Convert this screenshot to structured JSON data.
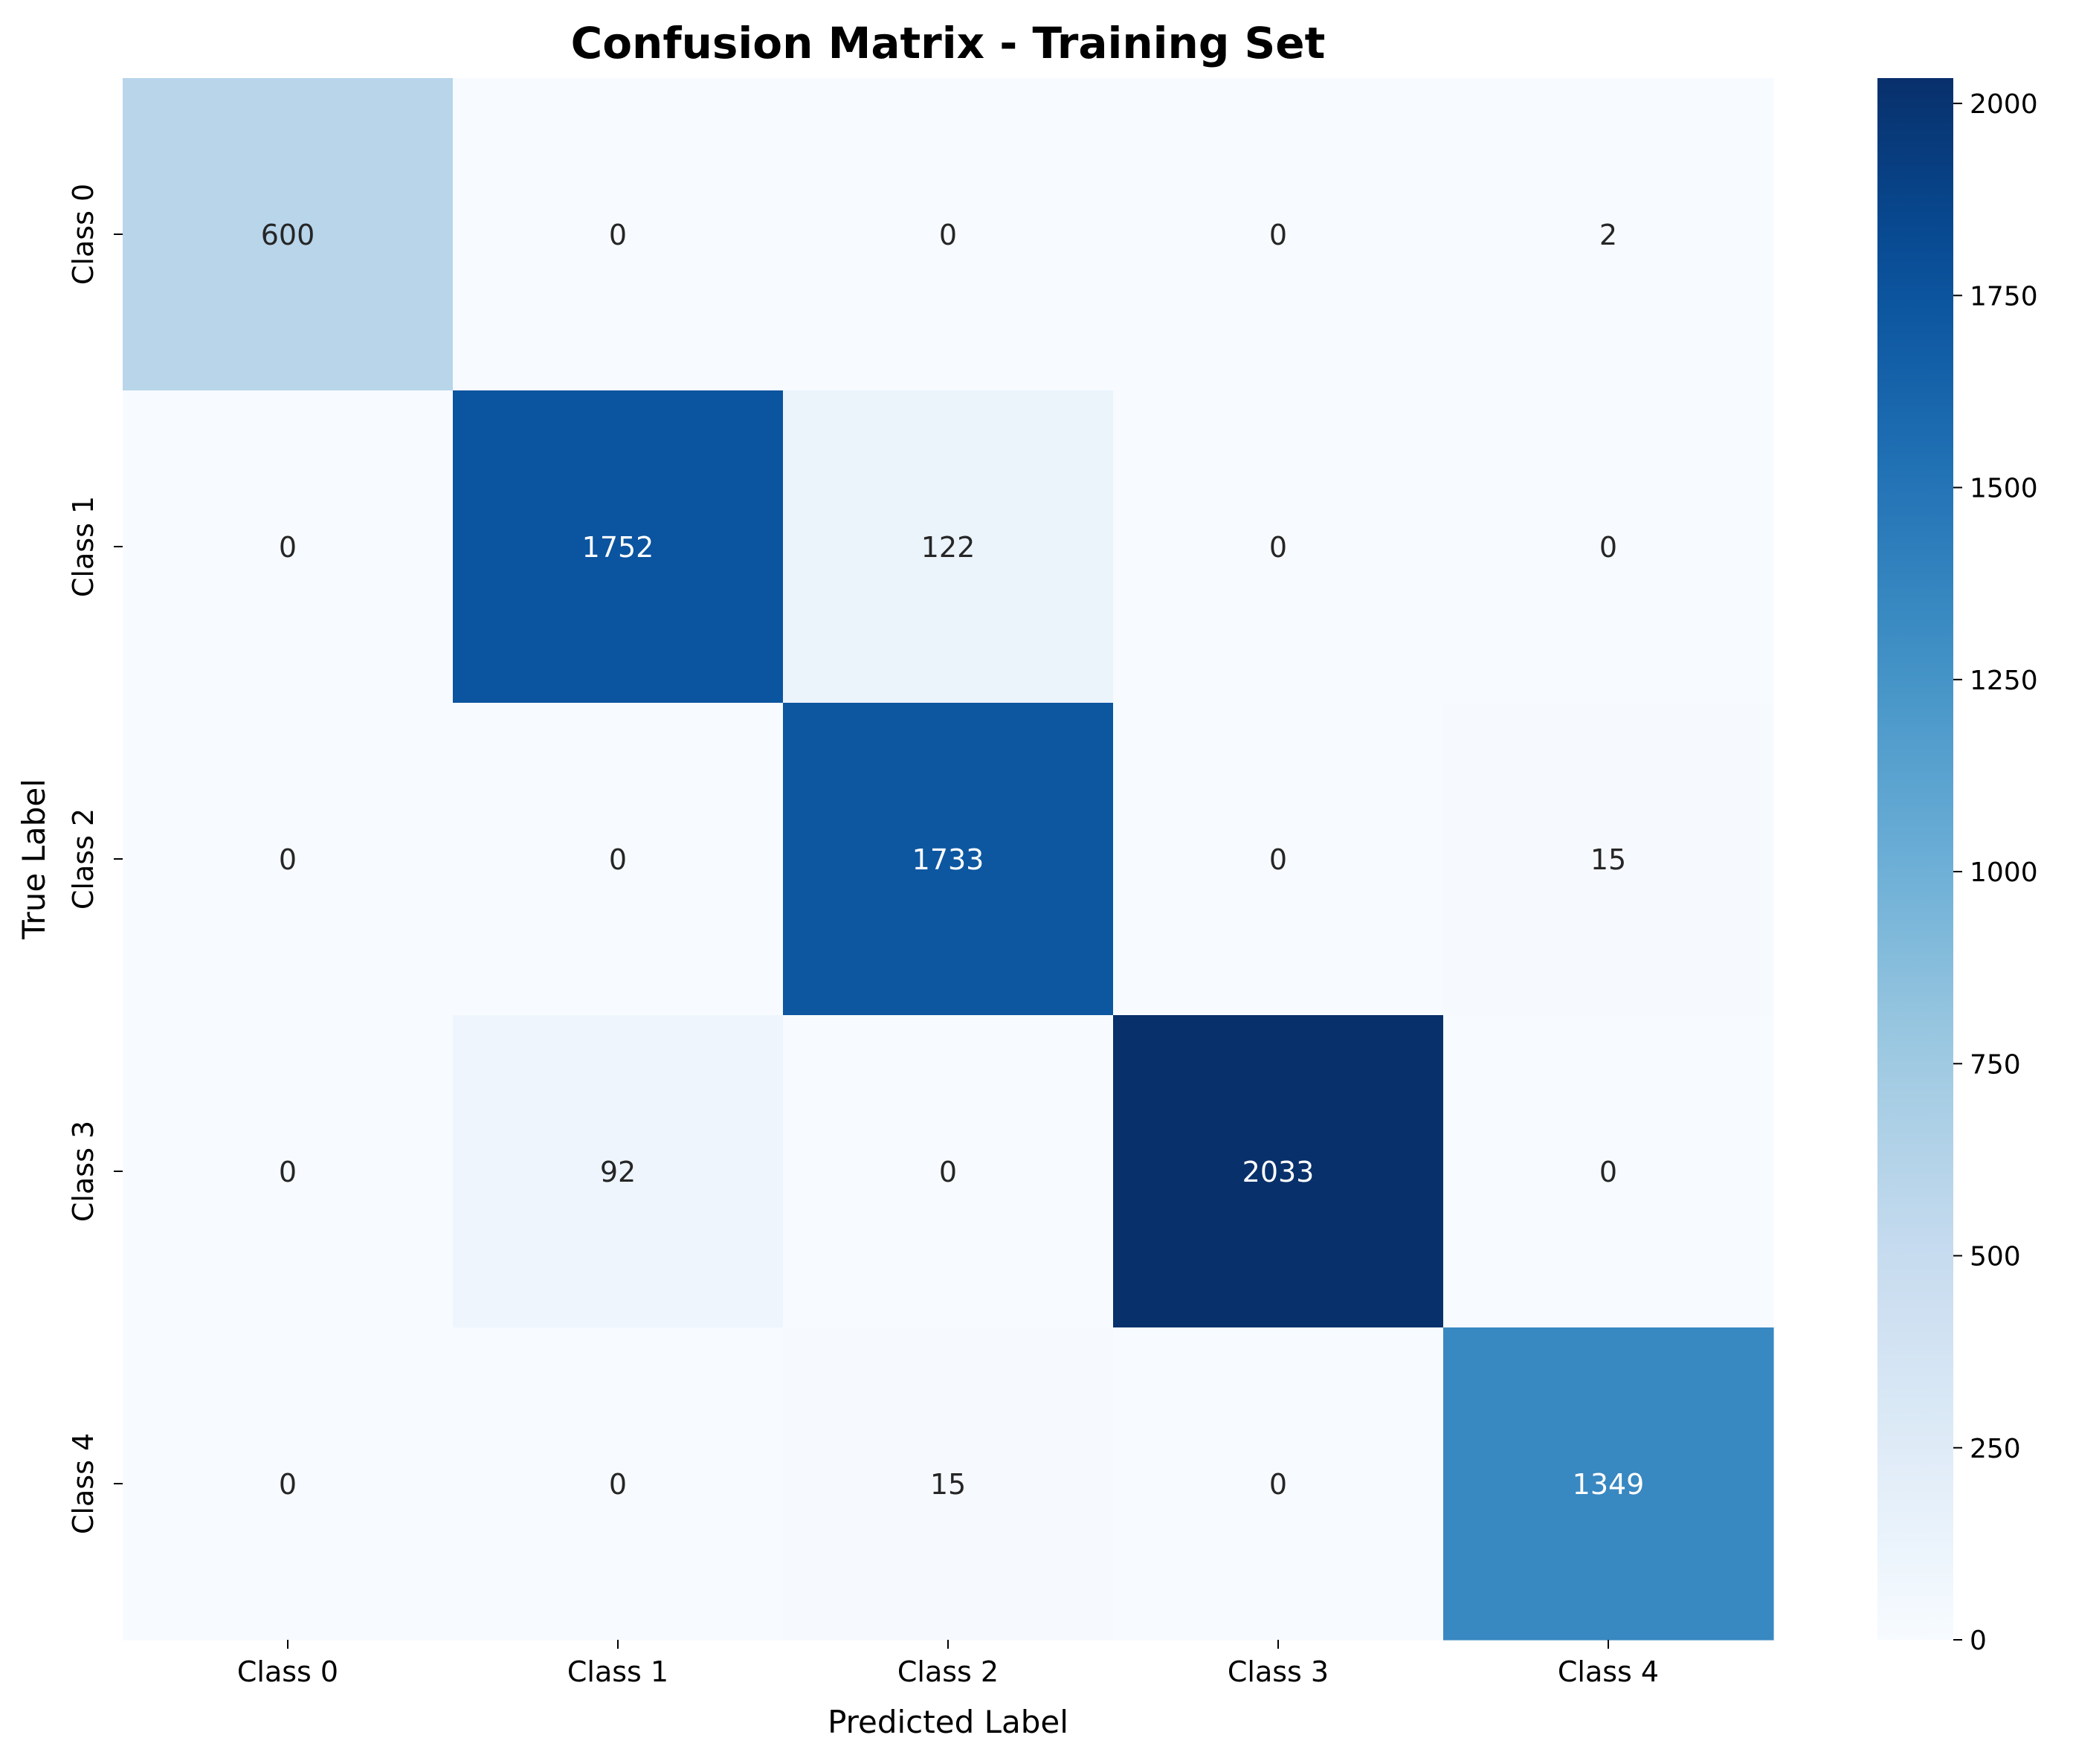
{
  "chart_data": {
    "type": "heatmap",
    "title": "Confusion Matrix - Training Set",
    "xlabel": "Predicted Label",
    "ylabel": "True Label",
    "x_categories": [
      "Class 0",
      "Class 1",
      "Class 2",
      "Class 3",
      "Class 4"
    ],
    "y_categories": [
      "Class 0",
      "Class 1",
      "Class 2",
      "Class 3",
      "Class 4"
    ],
    "values": [
      [
        600,
        0,
        0,
        0,
        2
      ],
      [
        0,
        1752,
        122,
        0,
        0
      ],
      [
        0,
        0,
        1733,
        0,
        15
      ],
      [
        0,
        92,
        0,
        2033,
        0
      ],
      [
        0,
        0,
        15,
        0,
        1349
      ]
    ],
    "colormap": "Blues",
    "colorbar": {
      "range": [
        0,
        2033
      ],
      "ticks": [
        0,
        250,
        500,
        750,
        1000,
        1250,
        1500,
        1750,
        2000
      ]
    },
    "grid": false
  }
}
